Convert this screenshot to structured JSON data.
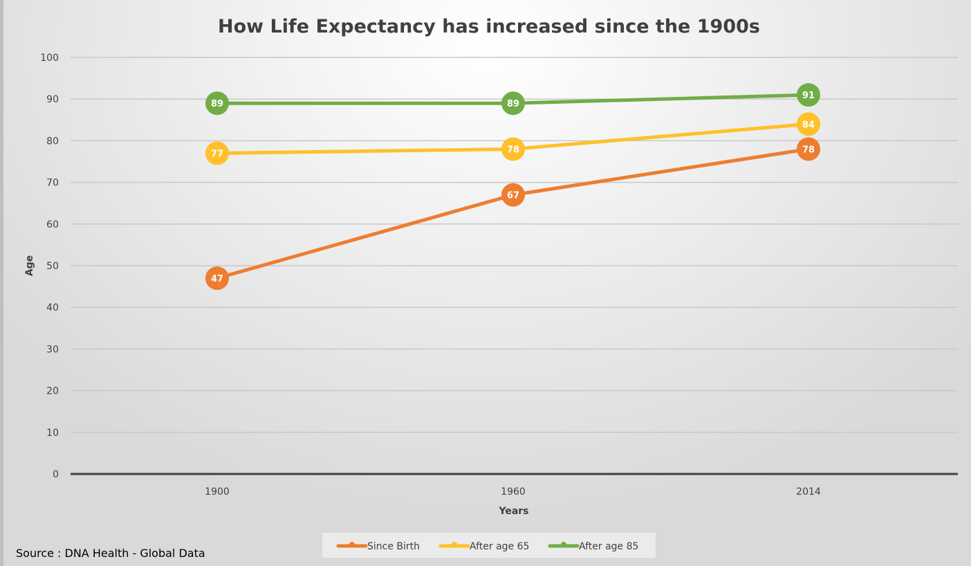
{
  "chart_data": {
    "type": "line",
    "title": "How Life Expectancy has increased since the 1900s",
    "xlabel": "Years",
    "ylabel": "Age",
    "categories": [
      "1900",
      "1960",
      "2014"
    ],
    "ylim": [
      0,
      100
    ],
    "yticks": [
      0,
      10,
      20,
      30,
      40,
      50,
      60,
      70,
      80,
      90,
      100
    ],
    "grid": true,
    "legend_position": "bottom",
    "series": [
      {
        "name": "Since Birth",
        "values": [
          47,
          67,
          78
        ],
        "color": "#ED7D31"
      },
      {
        "name": "After age 65",
        "values": [
          77,
          78,
          84
        ],
        "color": "#FFC02B"
      },
      {
        "name": "After age 85",
        "values": [
          89,
          89,
          91
        ],
        "color": "#70AD47"
      }
    ],
    "source": "Source : DNA Health - Global Data"
  }
}
